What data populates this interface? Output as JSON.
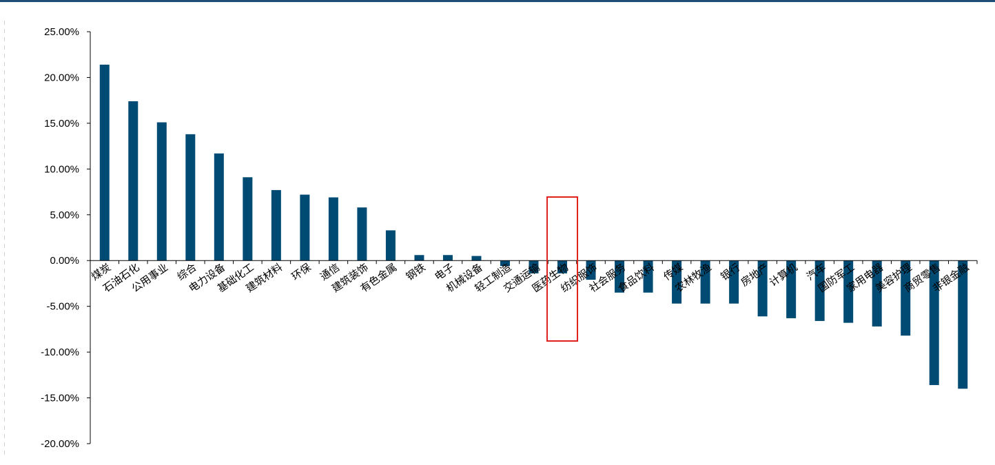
{
  "chart_data": {
    "type": "bar",
    "categories": [
      "煤炭",
      "石油石化",
      "公用事业",
      "综合",
      "电力设备",
      "基础化工",
      "建筑材料",
      "环保",
      "通信",
      "建筑装饰",
      "有色金属",
      "钢铁",
      "电子",
      "机械设备",
      "轻工制造",
      "交通运输",
      "医药生物",
      "纺织服饰",
      "社会服务",
      "食品饮料",
      "传媒",
      "农林牧渔",
      "银行",
      "房地产",
      "计算机",
      "汽车",
      "国防军工",
      "家用电器",
      "美容护理",
      "商贸零售",
      "非银金融"
    ],
    "series": [
      {
        "values": [
          21.4,
          17.4,
          15.1,
          13.8,
          11.7,
          9.1,
          7.7,
          7.2,
          6.9,
          5.8,
          3.3,
          0.6,
          0.6,
          0.5,
          -0.6,
          -1.4,
          -1.4,
          -2.1,
          -3.5,
          -3.5,
          -4.7,
          -4.7,
          -4.7,
          -6.1,
          -6.3,
          -6.6,
          -6.8,
          -7.2,
          -8.2,
          -13.6,
          -14.0
        ]
      }
    ],
    "yticks": [
      "25.00%",
      "20.00%",
      "15.00%",
      "10.00%",
      "5.00%",
      "0.00%",
      "-5.00%",
      "-10.00%",
      "-15.00%",
      "-20.00%"
    ],
    "ylim": [
      -20,
      25
    ],
    "bar_color": "#004b73",
    "highlight": {
      "category": "医药生物",
      "color": "#e0201b"
    },
    "grid": false
  }
}
